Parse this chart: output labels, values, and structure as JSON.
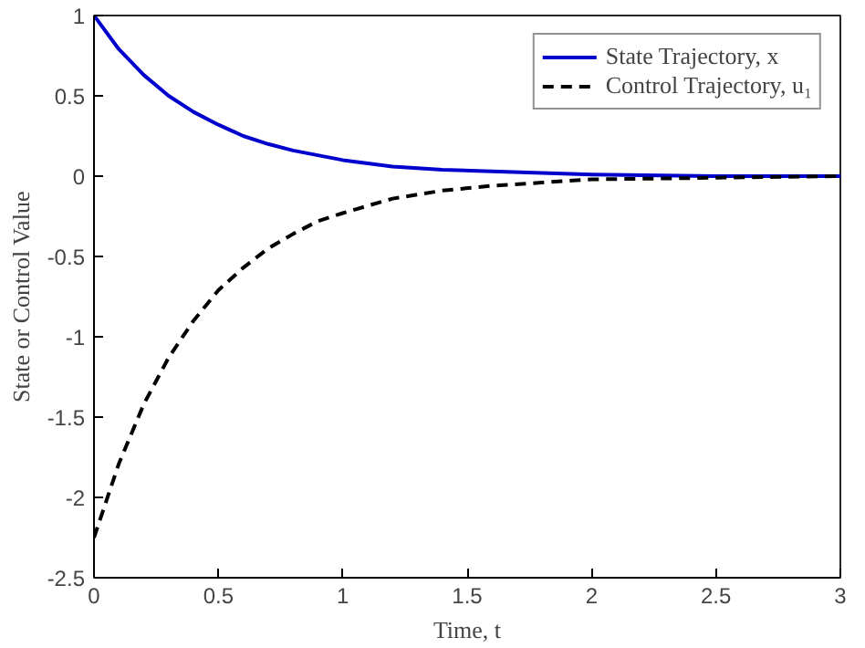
{
  "chart_data": {
    "type": "line",
    "xlabel": "Time, t",
    "ylabel": "State or Control Value",
    "x": [
      0,
      0.1,
      0.2,
      0.3,
      0.4,
      0.5,
      0.6,
      0.7,
      0.8,
      0.9,
      1.0,
      1.2,
      1.4,
      1.6,
      1.8,
      2.0,
      2.5,
      3.0
    ],
    "series": [
      {
        "name": "State Trajectory, x",
        "color": "#0000cc",
        "line_style": "solid",
        "values": [
          1,
          0.79,
          0.63,
          0.5,
          0.4,
          0.32,
          0.25,
          0.2,
          0.16,
          0.13,
          0.1,
          0.06,
          0.04,
          0.03,
          0.02,
          0.01,
          0,
          0
        ]
      },
      {
        "name": "Control Trajectory, u₁",
        "color": "#000000",
        "line_style": "dashed",
        "values": [
          -2.25,
          -1.79,
          -1.42,
          -1.13,
          -0.9,
          -0.71,
          -0.57,
          -0.45,
          -0.36,
          -0.28,
          -0.23,
          -0.14,
          -0.09,
          -0.06,
          -0.04,
          -0.02,
          -0.01,
          0
        ]
      }
    ],
    "xlim": [
      0,
      3
    ],
    "xticks": [
      0,
      0.5,
      1,
      1.5,
      2,
      2.5,
      3
    ],
    "ylim": [
      -2.5,
      1
    ],
    "yticks": [
      -2.5,
      -2,
      -1.5,
      -1,
      -0.5,
      0,
      0.5,
      1
    ],
    "grid": false,
    "legend": "top right",
    "marker": "none"
  }
}
